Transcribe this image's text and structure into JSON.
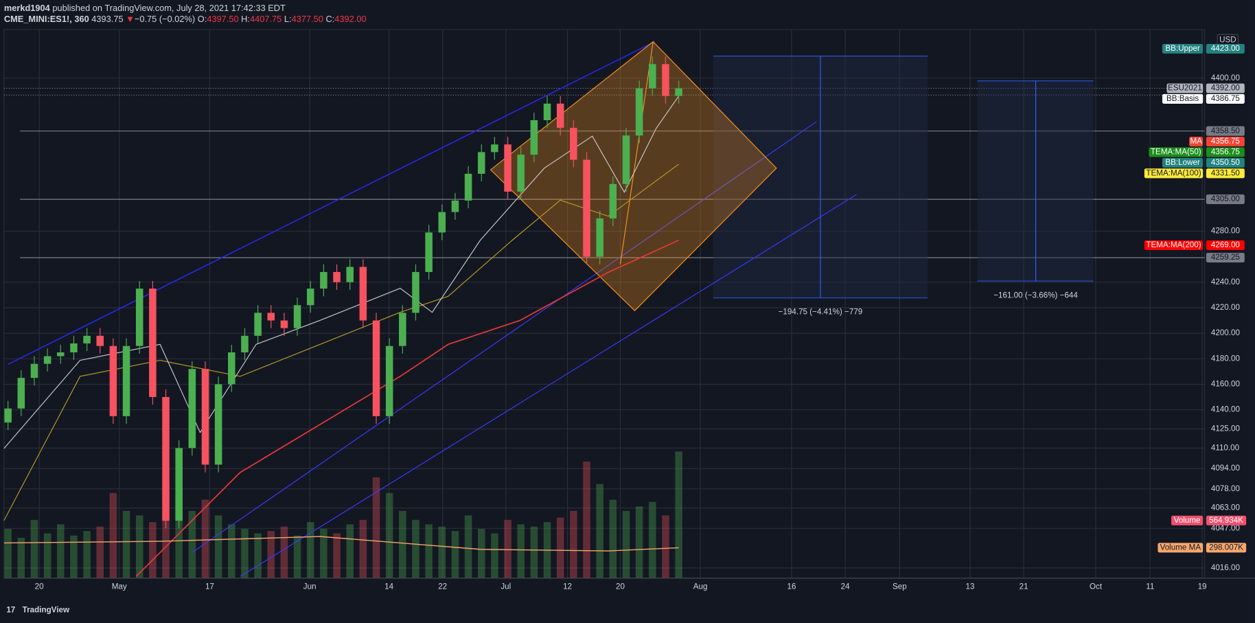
{
  "header": {
    "publisher": "merkd1904",
    "published": "published on TradingView.com, July 28, 2021 17:42:33 EDT",
    "symbol": "CME_MINI:ES1!, 360",
    "last": "4393.75",
    "arrow": "▼",
    "change": "−0.75 (−0.02%)",
    "ohlc": [
      {
        "key": "O:",
        "value": "4397.50"
      },
      {
        "key": "H:",
        "value": "4407.75"
      },
      {
        "key": "L:",
        "value": "4377.50"
      },
      {
        "key": "C:",
        "value": "4392.00"
      }
    ]
  },
  "chart_data": {
    "type": "candlestick",
    "currency": "USD",
    "up_color": "#4caf50",
    "down_color": "#f7525f",
    "x_labels": [
      "20",
      "May",
      "17",
      "Jun",
      "14",
      "22",
      "Jul",
      "12",
      "20",
      "Aug",
      "16",
      "24",
      "Sep",
      "13",
      "21",
      "Oct",
      "11",
      "19"
    ],
    "open": [
      4130,
      4141,
      4165,
      4176,
      4182,
      4185,
      4192,
      4198,
      4190,
      4135,
      4190,
      4235,
      4150,
      4053,
      4110,
      4172,
      4097,
      4160,
      4185,
      4198,
      4216,
      4210,
      4204,
      4222,
      4235,
      4248,
      4240,
      4252,
      4210,
      4135,
      4190,
      4216,
      4248,
      4279,
      4295,
      4304,
      4325,
      4342,
      4348,
      4311,
      4340,
      4367,
      4380,
      4361,
      4336,
      4260,
      4290,
      4317,
      4355,
      4392,
      4411,
      4386
    ],
    "high": [
      4147,
      4171,
      4182,
      4188,
      4191,
      4198,
      4204,
      4204,
      4196,
      4196,
      4241,
      4241,
      4156,
      4116,
      4178,
      4178,
      4166,
      4191,
      4204,
      4222,
      4222,
      4216,
      4228,
      4241,
      4254,
      4254,
      4258,
      4258,
      4216,
      4196,
      4222,
      4254,
      4285,
      4301,
      4310,
      4331,
      4348,
      4354,
      4354,
      4346,
      4373,
      4386,
      4386,
      4367,
      4342,
      4296,
      4323,
      4361,
      4398,
      4417,
      4417,
      4398
    ],
    "low": [
      4124,
      4135,
      4159,
      4170,
      4176,
      4179,
      4186,
      4184,
      4129,
      4129,
      4184,
      4144,
      4047,
      4047,
      4104,
      4091,
      4091,
      4154,
      4179,
      4192,
      4204,
      4198,
      4198,
      4216,
      4229,
      4234,
      4234,
      4204,
      4129,
      4129,
      4184,
      4210,
      4242,
      4273,
      4289,
      4298,
      4319,
      4336,
      4305,
      4305,
      4334,
      4361,
      4355,
      4330,
      4254,
      4254,
      4284,
      4311,
      4349,
      4386,
      4380,
      4380
    ],
    "close": [
      4141,
      4165,
      4176,
      4182,
      4185,
      4192,
      4198,
      4190,
      4135,
      4190,
      4235,
      4150,
      4053,
      4110,
      4172,
      4097,
      4160,
      4185,
      4198,
      4216,
      4210,
      4204,
      4222,
      4235,
      4248,
      4240,
      4252,
      4210,
      4135,
      4190,
      4216,
      4248,
      4279,
      4295,
      4304,
      4325,
      4342,
      4348,
      4311,
      4340,
      4367,
      4380,
      4361,
      4336,
      4260,
      4290,
      4317,
      4355,
      4392,
      4411,
      4386,
      4392
    ],
    "volume": [
      220,
      180,
      260,
      200,
      240,
      190,
      210,
      230,
      380,
      300,
      280,
      250,
      420,
      360,
      300,
      350,
      280,
      240,
      220,
      200,
      210,
      230,
      190,
      250,
      220,
      200,
      240,
      260,
      450,
      380,
      300,
      260,
      240,
      230,
      210,
      280,
      220,
      200,
      260,
      240,
      230,
      250,
      270,
      300,
      520,
      420,
      350,
      300,
      320,
      340,
      280,
      565
    ],
    "ylim": [
      4008,
      4438
    ],
    "yticks": [
      {
        "value": 4016,
        "label": "4016.00"
      },
      {
        "value": 4047,
        "label": "4047.00"
      },
      {
        "value": 4063,
        "label": "4063.00"
      },
      {
        "value": 4078,
        "label": "4078.00"
      },
      {
        "value": 4094,
        "label": "4094.00"
      },
      {
        "value": 4110,
        "label": "4110.00"
      },
      {
        "value": 4125,
        "label": "4125.00"
      },
      {
        "value": 4140,
        "label": "4140.00"
      },
      {
        "value": 4160,
        "label": "4160.00"
      },
      {
        "value": 4180,
        "label": "4180.00"
      },
      {
        "value": 4200,
        "label": "4200.00"
      },
      {
        "value": 4220,
        "label": "4220.00"
      },
      {
        "value": 4240,
        "label": "4240.00"
      },
      {
        "value": 4280,
        "label": "4280.00"
      },
      {
        "value": 4400,
        "label": "4400.00"
      }
    ],
    "grid": true,
    "price_labels": [
      {
        "name": "BB:Upper",
        "value": 4423,
        "label": "4423.00",
        "color": "#22827f",
        "text_color": "#ffffff"
      },
      {
        "name": "ESU2021",
        "value": 4392,
        "label": "4392.00",
        "color": "#b2b5be",
        "text_color": "#131722"
      },
      {
        "name": "BB:Basis",
        "value": 4386.75,
        "label": "4386.75",
        "color": "#ffffff",
        "text_color": "#131722"
      },
      {
        "value": 4358.5,
        "label": "4358.50",
        "color": "#787b86",
        "text_color": "#131722"
      },
      {
        "name": "MA",
        "value": 4356.75,
        "label": "4356.75",
        "color": "#f44336",
        "text_color": "#ffffff"
      },
      {
        "name": "TEMA:MA(50)",
        "value": 4356.75,
        "label": "4356.75",
        "color": "#1b8e1b",
        "text_color": "#ffffff"
      },
      {
        "name": "BB:Lower",
        "value": 4350.5,
        "label": "4350.50",
        "color": "#22827f",
        "text_color": "#ffffff"
      },
      {
        "name": "TEMA:MA(100)",
        "value": 4331.5,
        "label": "4331.50",
        "color": "#ffeb3b",
        "text_color": "#131722"
      },
      {
        "value": 4305,
        "label": "4305.00",
        "color": "#787b86",
        "text_color": "#131722"
      },
      {
        "name": "TEMA:MA(200)",
        "value": 4269,
        "label": "4269.00",
        "color": "#ff0000",
        "text_color": "#ffffff"
      },
      {
        "value": 4259.25,
        "label": "4259.25",
        "color": "#787b86",
        "text_color": "#131722"
      }
    ],
    "volume_labels": [
      {
        "name": "Volume",
        "label": "564.934K",
        "color": "#f0506e",
        "text_color": "#ffffff"
      },
      {
        "name": "Volume MA",
        "label": "298.007K",
        "color": "#f7a76c",
        "text_color": "#131722"
      }
    ],
    "measurements": [
      "−194.75 (−4.41%) −779",
      "−161.00 (−3.66%) −644"
    ]
  },
  "footer": {
    "brand": "TradingView"
  }
}
